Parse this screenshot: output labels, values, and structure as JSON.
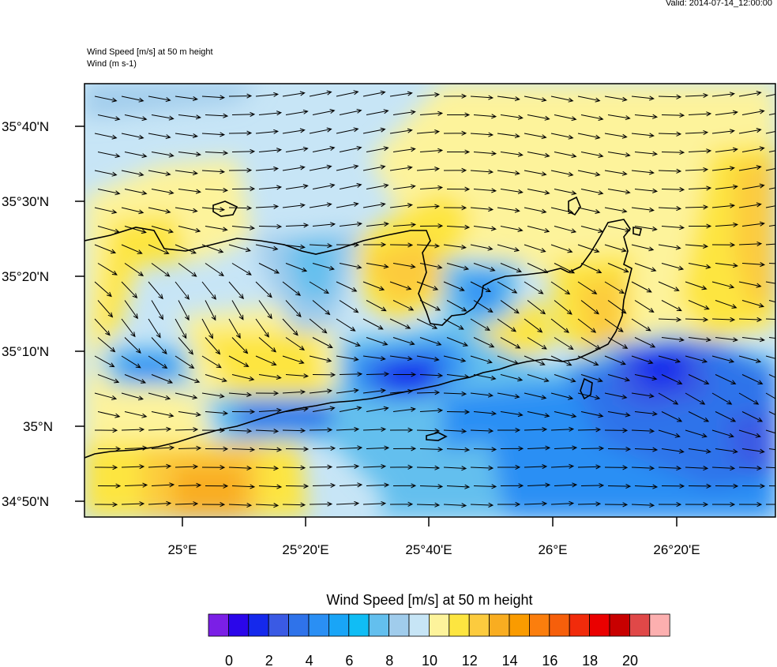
{
  "header": {
    "valid_time": "Valid: 2014-07-14_12:00:00",
    "title_line1": "Wind Speed [m/s] at 50 m height",
    "title_line2": "Wind   (m s-1)"
  },
  "map": {
    "lat_labels": [
      "35°40'N",
      "35°30'N",
      "35°20'N",
      "35°10'N",
      "35°N",
      "34°50'N"
    ],
    "lon_labels": [
      "25°E",
      "25°20'E",
      "25°40'E",
      "26°E",
      "26°20'E"
    ],
    "wind_vector_color": "#000000",
    "coastline_color": "#000000"
  },
  "colorbar": {
    "title": "Wind Speed [m/s] at 50 m height",
    "tick_labels": [
      "0",
      "2",
      "4",
      "6",
      "8",
      "10",
      "12",
      "14",
      "16",
      "18",
      "20"
    ],
    "colors": [
      "#7b1fe6",
      "#2b06ea",
      "#1529ec",
      "#3a5ae4",
      "#2f73ea",
      "#2a8ff4",
      "#19a5f7",
      "#10bdf5",
      "#63bfee",
      "#a0ccec",
      "#c7e5f6",
      "#fdf39b",
      "#fde540",
      "#fccb3e",
      "#f9ad21",
      "#fa9b00",
      "#fb7e0d",
      "#f65f0b",
      "#f12b0b",
      "#ea0000",
      "#c80000",
      "#e04848",
      "#fcafaf"
    ]
  }
}
